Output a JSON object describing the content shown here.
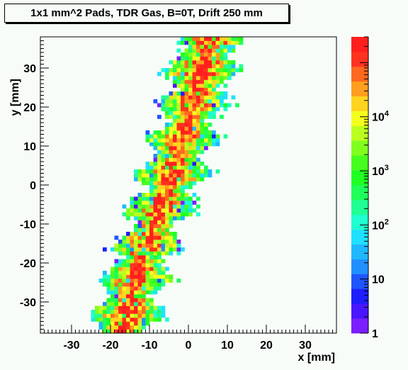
{
  "chart_data": {
    "type": "heatmap",
    "title": "1x1 mm^2 Pads, TDR Gas, B=0T, Drift 250 mm",
    "xlabel": "x [mm]",
    "ylabel": "y [mm]",
    "xlim": [
      -38,
      38
    ],
    "ylim": [
      -38,
      38
    ],
    "bin_size": 1,
    "x_ticks": [
      -30,
      -20,
      -10,
      0,
      10,
      20,
      30
    ],
    "y_ticks": [
      -30,
      -20,
      -10,
      0,
      10,
      20,
      30
    ],
    "colorbar": {
      "scale": "log",
      "range": [
        1,
        300000
      ],
      "tick_labels": [
        {
          "value": 1,
          "label": "1"
        },
        {
          "value": 10,
          "label": "10"
        },
        {
          "value": 100,
          "label": "10",
          "exponent": "2"
        },
        {
          "value": 1000,
          "label": "10",
          "exponent": "3"
        },
        {
          "value": 10000,
          "label": "10",
          "exponent": "4"
        }
      ],
      "colors": [
        "#7a1fff",
        "#4a16ff",
        "#1e1eff",
        "#1f55ff",
        "#2090ff",
        "#1fb8ff",
        "#1fe1ff",
        "#1fffd0",
        "#1fff94",
        "#1fff5a",
        "#1fff24",
        "#46ff1f",
        "#80ff1f",
        "#baff1f",
        "#f4ff1f",
        "#ffd41f",
        "#ff9e1f",
        "#ff681f",
        "#ff331f",
        "#ff1f1f"
      ]
    },
    "band_centerline": [
      {
        "y": -38,
        "x": -17
      },
      {
        "y": -30,
        "x": -15
      },
      {
        "y": -22,
        "x": -13
      },
      {
        "y": -14,
        "x": -10
      },
      {
        "y": -8,
        "x": -8
      },
      {
        "y": 0,
        "x": -5
      },
      {
        "y": 8,
        "x": -3
      },
      {
        "y": 16,
        "x": 0
      },
      {
        "y": 24,
        "x": 2
      },
      {
        "y": 32,
        "x": 4
      },
      {
        "y": 38,
        "x": 6
      }
    ],
    "band_half_width": 7
  }
}
